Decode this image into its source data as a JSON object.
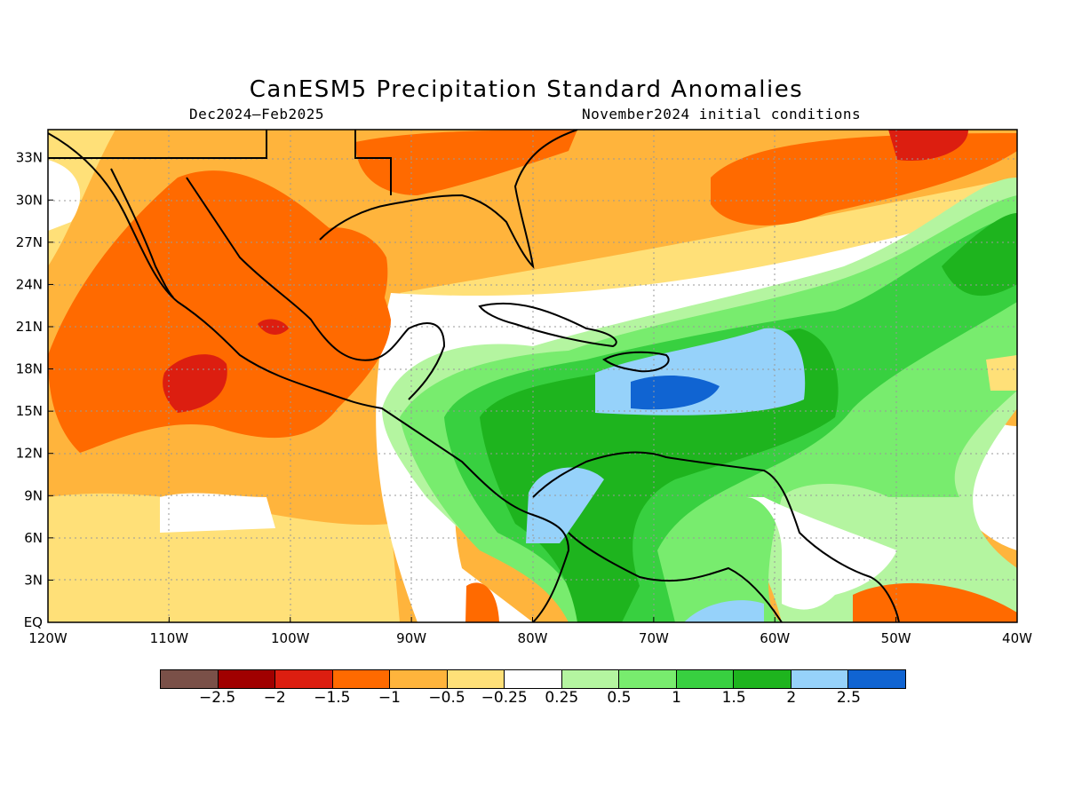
{
  "title": "CanESM5 Precipitation Standard Anomalies",
  "period": "Dec2024–Feb2025",
  "init": "November2024 initial conditions",
  "lat_labels": [
    "EQ",
    "3N",
    "6N",
    "9N",
    "12N",
    "15N",
    "18N",
    "21N",
    "24N",
    "27N",
    "30N",
    "33N"
  ],
  "lon_labels": [
    "120W",
    "110W",
    "100W",
    "90W",
    "80W",
    "70W",
    "60W",
    "50W",
    "40W"
  ],
  "legend": {
    "colors": [
      "#7a5048",
      "#a00000",
      "#dc1e10",
      "#ff6a00",
      "#ffb43c",
      "#ffe078",
      "#ffffff",
      "#b4f5a0",
      "#78ec6e",
      "#38d040",
      "#1eb41e",
      "#96d2fa",
      "#1064d2"
    ],
    "labels": [
      "−2.5",
      "−2",
      "−1.5",
      "−1",
      "−0.5",
      "−0.25",
      "0.25",
      "0.5",
      "1",
      "1.5",
      "2",
      "2.5"
    ]
  }
}
